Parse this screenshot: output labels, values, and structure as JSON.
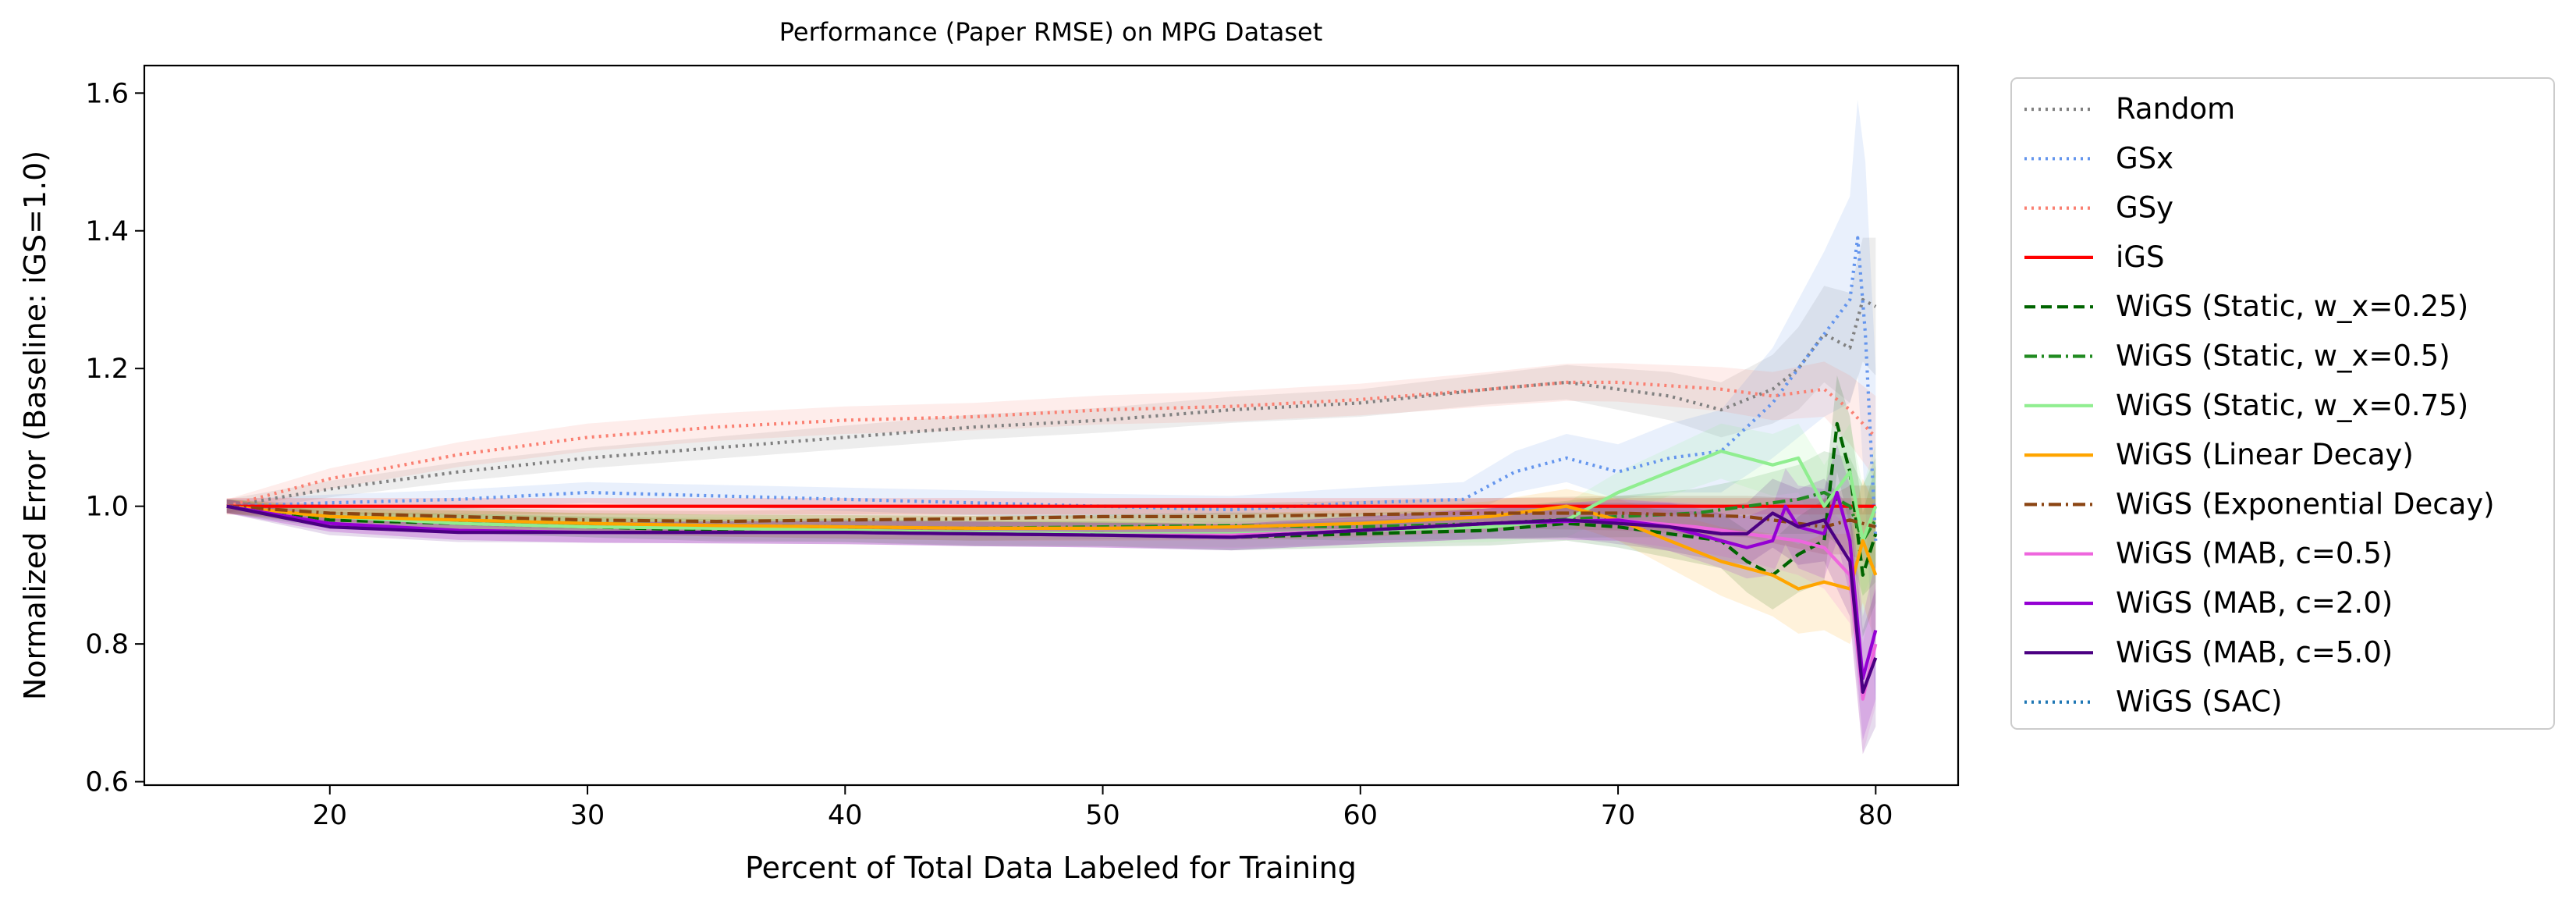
{
  "chart_data": {
    "type": "line",
    "title": "Performance (Paper RMSE) on MPG Dataset",
    "xlabel": "Percent of Total Data Labeled for Training",
    "ylabel": "Normalized Error (Baseline: iGS=1.0)",
    "xlim": [
      12.8,
      83.2
    ],
    "ylim": [
      0.595,
      1.64
    ],
    "xticks": [
      20,
      30,
      40,
      50,
      60,
      70,
      80
    ],
    "xtick_labels": [
      "20",
      "30",
      "40",
      "50",
      "60",
      "70",
      "80"
    ],
    "yticks": [
      0.6,
      0.8,
      1.0,
      1.2,
      1.4,
      1.6
    ],
    "ytick_labels": [
      "0.6",
      "0.8",
      "1.0",
      "1.2",
      "1.4",
      "1.6"
    ],
    "grid": false,
    "legend_position": "outside-right",
    "series": [
      {
        "name": "Random",
        "color": "#808080",
        "dash": "dotted",
        "x": [
          16,
          20,
          25,
          30,
          35,
          40,
          45,
          50,
          55,
          60,
          65,
          68,
          70,
          72,
          74,
          76,
          77,
          78,
          79,
          79.5,
          80
        ],
        "y": [
          1.0,
          1.025,
          1.05,
          1.07,
          1.085,
          1.1,
          1.115,
          1.125,
          1.14,
          1.15,
          1.17,
          1.18,
          1.17,
          1.16,
          1.14,
          1.17,
          1.2,
          1.25,
          1.23,
          1.3,
          1.29
        ],
        "band": [
          0.01,
          0.012,
          0.014,
          0.015,
          0.016,
          0.017,
          0.018,
          0.018,
          0.019,
          0.02,
          0.022,
          0.025,
          0.03,
          0.035,
          0.04,
          0.05,
          0.06,
          0.07,
          0.08,
          0.09,
          0.1
        ]
      },
      {
        "name": "GSx",
        "color": "#6495ed",
        "dash": "dotted",
        "x": [
          16,
          20,
          25,
          30,
          35,
          40,
          45,
          50,
          55,
          60,
          64,
          66,
          68,
          70,
          72,
          74,
          76,
          77,
          78,
          79,
          79.3,
          79.6,
          80
        ],
        "y": [
          1.0,
          1.005,
          1.01,
          1.02,
          1.015,
          1.01,
          1.005,
          1.0,
          0.995,
          1.005,
          1.01,
          1.05,
          1.07,
          1.05,
          1.07,
          1.08,
          1.15,
          1.2,
          1.25,
          1.3,
          1.39,
          1.25,
          0.95
        ],
        "band": [
          0.01,
          0.012,
          0.014,
          0.015,
          0.016,
          0.017,
          0.018,
          0.018,
          0.02,
          0.022,
          0.025,
          0.03,
          0.035,
          0.04,
          0.05,
          0.06,
          0.08,
          0.1,
          0.12,
          0.15,
          0.2,
          0.25,
          0.25
        ]
      },
      {
        "name": "GSy",
        "color": "#fa8072",
        "dash": "dotted",
        "x": [
          16,
          20,
          25,
          30,
          35,
          40,
          45,
          50,
          55,
          60,
          65,
          68,
          70,
          72,
          74,
          76,
          78,
          79,
          80
        ],
        "y": [
          1.0,
          1.04,
          1.075,
          1.1,
          1.115,
          1.125,
          1.13,
          1.14,
          1.145,
          1.155,
          1.17,
          1.18,
          1.18,
          1.175,
          1.17,
          1.16,
          1.17,
          1.14,
          1.1
        ],
        "band": [
          0.01,
          0.015,
          0.018,
          0.02,
          0.02,
          0.02,
          0.02,
          0.021,
          0.022,
          0.023,
          0.025,
          0.027,
          0.028,
          0.03,
          0.032,
          0.035,
          0.04,
          0.05,
          0.06
        ]
      },
      {
        "name": "iGS",
        "color": "#ff0000",
        "dash": "solid",
        "x": [
          16,
          80
        ],
        "y": [
          1.0,
          1.0
        ],
        "band": [
          0.012,
          0.012
        ]
      },
      {
        "name": "WiGS (Static, w_x=0.25)",
        "color": "#006400",
        "dash": "dashed",
        "x": [
          16,
          20,
          25,
          30,
          35,
          40,
          45,
          50,
          55,
          60,
          65,
          68,
          70,
          72,
          74,
          75,
          76,
          77,
          78,
          78.5,
          79,
          79.5,
          80
        ],
        "y": [
          1.0,
          0.98,
          0.975,
          0.97,
          0.965,
          0.965,
          0.96,
          0.96,
          0.955,
          0.96,
          0.965,
          0.975,
          0.97,
          0.96,
          0.95,
          0.92,
          0.9,
          0.93,
          0.95,
          1.12,
          1.05,
          0.9,
          0.96
        ],
        "band": [
          0.01,
          0.012,
          0.014,
          0.015,
          0.016,
          0.017,
          0.018,
          0.018,
          0.019,
          0.02,
          0.022,
          0.025,
          0.03,
          0.035,
          0.04,
          0.045,
          0.05,
          0.055,
          0.06,
          0.07,
          0.08,
          0.09,
          0.1
        ]
      },
      {
        "name": "WiGS (Static, w_x=0.5)",
        "color": "#228b22",
        "dash": "dashdot",
        "x": [
          16,
          20,
          25,
          30,
          35,
          40,
          45,
          50,
          55,
          60,
          65,
          70,
          73,
          75,
          77,
          78,
          79,
          79.5,
          80
        ],
        "y": [
          1.0,
          0.985,
          0.98,
          0.975,
          0.972,
          0.97,
          0.968,
          0.97,
          0.972,
          0.97,
          0.975,
          0.985,
          0.99,
          1.0,
          1.01,
          1.02,
          1.0,
          0.95,
          0.98
        ],
        "band": [
          0.01,
          0.012,
          0.014,
          0.015,
          0.016,
          0.017,
          0.018,
          0.018,
          0.019,
          0.02,
          0.022,
          0.03,
          0.035,
          0.04,
          0.05,
          0.06,
          0.07,
          0.08,
          0.09
        ]
      },
      {
        "name": "WiGS (Static, w_x=0.75)",
        "color": "#90ee90",
        "dash": "solid",
        "x": [
          16,
          20,
          25,
          30,
          35,
          40,
          45,
          50,
          55,
          60,
          65,
          68,
          70,
          72,
          74,
          76,
          77,
          78,
          79,
          79.5,
          80
        ],
        "y": [
          1.0,
          0.985,
          0.975,
          0.97,
          0.968,
          0.965,
          0.962,
          0.96,
          0.96,
          0.965,
          0.97,
          0.98,
          1.02,
          1.05,
          1.08,
          1.06,
          1.07,
          1.0,
          1.05,
          0.95,
          1.0
        ],
        "band": [
          0.01,
          0.012,
          0.014,
          0.015,
          0.016,
          0.017,
          0.018,
          0.018,
          0.019,
          0.02,
          0.022,
          0.025,
          0.03,
          0.035,
          0.04,
          0.045,
          0.05,
          0.06,
          0.07,
          0.08,
          0.09
        ]
      },
      {
        "name": "WiGS (Linear Decay)",
        "color": "#ffa500",
        "dash": "solid",
        "x": [
          16,
          20,
          25,
          30,
          35,
          40,
          45,
          50,
          55,
          60,
          65,
          68,
          70,
          72,
          74,
          76,
          77,
          78,
          79,
          79.5,
          80
        ],
        "y": [
          1.0,
          0.985,
          0.98,
          0.975,
          0.972,
          0.97,
          0.968,
          0.968,
          0.97,
          0.975,
          0.985,
          1.0,
          0.98,
          0.95,
          0.92,
          0.9,
          0.88,
          0.89,
          0.88,
          0.95,
          0.9
        ],
        "band": [
          0.01,
          0.012,
          0.014,
          0.015,
          0.016,
          0.017,
          0.018,
          0.018,
          0.019,
          0.02,
          0.022,
          0.025,
          0.03,
          0.04,
          0.05,
          0.06,
          0.065,
          0.07,
          0.08,
          0.09,
          0.1
        ]
      },
      {
        "name": "WiGS (Exponential Decay)",
        "color": "#8b4513",
        "dash": "dashdot",
        "x": [
          16,
          20,
          25,
          30,
          35,
          40,
          45,
          50,
          55,
          60,
          65,
          70,
          75,
          78,
          79,
          80
        ],
        "y": [
          1.0,
          0.99,
          0.985,
          0.98,
          0.978,
          0.98,
          0.982,
          0.985,
          0.985,
          0.988,
          0.99,
          0.99,
          0.985,
          0.97,
          0.98,
          0.97
        ],
        "band": [
          0.01,
          0.012,
          0.013,
          0.014,
          0.015,
          0.016,
          0.017,
          0.018,
          0.019,
          0.02,
          0.022,
          0.025,
          0.03,
          0.04,
          0.05,
          0.06
        ]
      },
      {
        "name": "WiGS (MAB, c=0.5)",
        "color": "#ee66dd",
        "dash": "solid",
        "x": [
          16,
          20,
          25,
          30,
          35,
          40,
          45,
          50,
          55,
          60,
          65,
          70,
          73,
          75,
          77,
          78,
          79,
          79.5,
          80
        ],
        "y": [
          1.0,
          0.975,
          0.965,
          0.962,
          0.962,
          0.962,
          0.96,
          0.958,
          0.958,
          0.965,
          0.975,
          0.98,
          0.97,
          0.96,
          0.95,
          0.94,
          0.9,
          0.72,
          0.8
        ],
        "band": [
          0.01,
          0.012,
          0.014,
          0.015,
          0.016,
          0.017,
          0.018,
          0.018,
          0.019,
          0.02,
          0.022,
          0.03,
          0.035,
          0.04,
          0.05,
          0.06,
          0.07,
          0.08,
          0.09
        ]
      },
      {
        "name": "WiGS (MAB, c=2.0)",
        "color": "#9400d3",
        "dash": "solid",
        "x": [
          16,
          20,
          25,
          30,
          35,
          40,
          45,
          50,
          55,
          60,
          65,
          70,
          72,
          74,
          75,
          76,
          76.5,
          77,
          78,
          78.5,
          79,
          79.5,
          80
        ],
        "y": [
          1.0,
          0.975,
          0.965,
          0.962,
          0.962,
          0.962,
          0.96,
          0.958,
          0.955,
          0.965,
          0.975,
          0.98,
          0.97,
          0.95,
          0.94,
          0.95,
          1.0,
          0.97,
          0.96,
          1.02,
          0.95,
          0.75,
          0.82
        ],
        "band": [
          0.01,
          0.012,
          0.014,
          0.015,
          0.016,
          0.017,
          0.018,
          0.018,
          0.019,
          0.02,
          0.022,
          0.03,
          0.035,
          0.04,
          0.045,
          0.05,
          0.055,
          0.06,
          0.065,
          0.07,
          0.08,
          0.09,
          0.1
        ]
      },
      {
        "name": "WiGS (MAB, c=5.0)",
        "color": "#4b0082",
        "dash": "solid",
        "x": [
          16,
          20,
          25,
          30,
          35,
          40,
          45,
          50,
          55,
          60,
          65,
          68,
          70,
          72,
          74,
          75,
          76,
          77,
          78,
          79,
          79.5,
          80
        ],
        "y": [
          1.0,
          0.97,
          0.962,
          0.962,
          0.962,
          0.962,
          0.96,
          0.958,
          0.955,
          0.965,
          0.975,
          0.98,
          0.975,
          0.97,
          0.96,
          0.96,
          0.99,
          0.97,
          0.98,
          0.92,
          0.73,
          0.78
        ],
        "band": [
          0.01,
          0.012,
          0.014,
          0.015,
          0.016,
          0.017,
          0.018,
          0.018,
          0.019,
          0.02,
          0.022,
          0.025,
          0.03,
          0.035,
          0.04,
          0.045,
          0.05,
          0.055,
          0.06,
          0.08,
          0.09,
          0.1
        ]
      },
      {
        "name": "WiGS (SAC)",
        "color": "#1f77b4",
        "dash": "dotted",
        "x": [],
        "y": [],
        "band": []
      }
    ]
  }
}
